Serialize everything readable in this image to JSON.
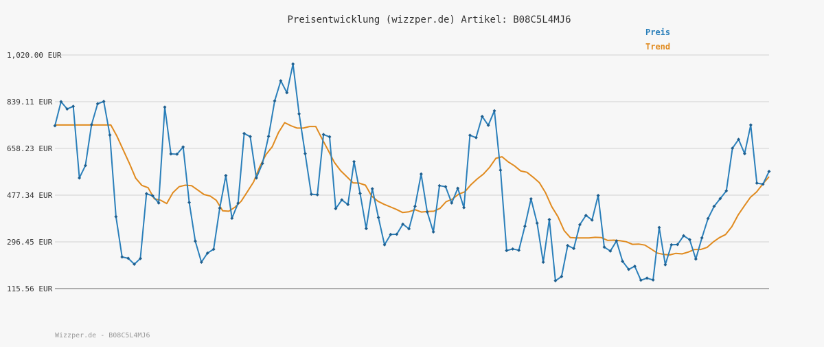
{
  "chart_data": {
    "type": "line",
    "title": "Preisentwicklung (wizzper.de) Artikel: B08C5L4MJ6",
    "y_ticks": [
      "1,020.00 EUR",
      "839.11 EUR",
      "658.23 EUR",
      "477.34 EUR",
      "296.45 EUR",
      "115.56 EUR"
    ],
    "y_tick_values": [
      1020.0,
      839.11,
      658.23,
      477.34,
      296.45,
      115.56
    ],
    "ylim": [
      115.56,
      1020.0
    ],
    "grid": true,
    "legend_position": "top-right",
    "series": [
      {
        "name": "Preis",
        "color": "#2a7fba",
        "values": [
          746,
          839,
          811,
          821,
          544,
          592,
          750,
          831,
          840,
          710,
          394,
          238,
          233,
          210,
          232,
          483,
          475,
          447,
          818,
          637,
          636,
          664,
          449,
          299,
          218,
          253,
          268,
          427,
          553,
          388,
          446,
          716,
          704,
          544,
          600,
          705,
          842,
          920,
          874,
          985,
          792,
          638,
          481,
          479,
          712,
          703,
          425,
          459,
          441,
          607,
          484,
          348,
          502,
          391,
          285,
          325,
          326,
          365,
          347,
          434,
          559,
          412,
          335,
          514,
          510,
          447,
          504,
          429,
          709,
          700,
          782,
          748,
          804,
          574,
          263,
          269,
          264,
          357,
          463,
          369,
          218,
          383,
          146,
          162,
          282,
          271,
          363,
          399,
          381,
          476,
          276,
          261,
          300,
          221,
          190,
          202,
          148,
          156,
          149,
          352,
          208,
          285,
          286,
          320,
          305,
          230,
          312,
          387,
          434,
          464,
          494,
          659,
          693,
          638,
          749,
          524,
          520,
          569
        ],
        "marker": "diamond"
      },
      {
        "name": "Trend",
        "color": "#e08a1e",
        "values": [
          749,
          749,
          749,
          749,
          749,
          749,
          749,
          749,
          749,
          749,
          705,
          652,
          600,
          543,
          515,
          506,
          463,
          458,
          445,
          487,
          510,
          516,
          514,
          497,
          480,
          474,
          457,
          417,
          415,
          431,
          454,
          491,
          529,
          588,
          635,
          665,
          720,
          758,
          746,
          737,
          737,
          743,
          743,
          696,
          651,
          604,
          572,
          549,
          525,
          524,
          516,
          474,
          454,
          442,
          432,
          422,
          410,
          413,
          421,
          412,
          414,
          415,
          426,
          452,
          462,
          481,
          490,
          518,
          540,
          559,
          585,
          620,
          626,
          606,
          591,
          571,
          566,
          547,
          526,
          487,
          433,
          394,
          340,
          313,
          312,
          312,
          312,
          314,
          313,
          302,
          303,
          301,
          297,
          287,
          288,
          284,
          269,
          253,
          248,
          246,
          252,
          250,
          257,
          267,
          267,
          275,
          296,
          313,
          325,
          355,
          400,
          435,
          469,
          490,
          521,
          549
        ]
      }
    ]
  },
  "footer": "Wizzper.de - B08C5L4MJ6"
}
